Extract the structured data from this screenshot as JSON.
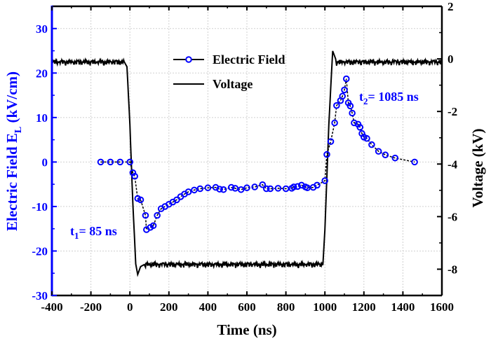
{
  "chart_data": {
    "type": "line",
    "title": "",
    "xlabel": "Time (ns)",
    "ylabel_left": "Electric Field  E",
    "ylabel_left_sub": "L",
    "ylabel_left_unit": " (kV/cm)",
    "ylabel_right": "Voltage (kV)",
    "xlim": [
      -400,
      1600
    ],
    "ylim_left": [
      -30,
      35
    ],
    "ylim_right": [
      -9,
      2
    ],
    "xticks": [
      -400,
      -200,
      0,
      200,
      400,
      600,
      800,
      1000,
      1200,
      1400,
      1600
    ],
    "yticks_left": [
      -30,
      -20,
      -10,
      0,
      10,
      20,
      30
    ],
    "yticks_right": [
      -8,
      -6,
      -4,
      -2,
      0,
      2
    ],
    "grid": true,
    "legend_position": "top-center",
    "colors": {
      "electric_field": "#0000ff",
      "voltage": "#000000",
      "left_axis": "#0000ff"
    },
    "series": [
      {
        "name": "Electric Field",
        "axis": "left",
        "marker": "open-circle",
        "x": [
          -150,
          -100,
          -50,
          0,
          15,
          25,
          40,
          55,
          80,
          85,
          105,
          120,
          140,
          160,
          180,
          200,
          220,
          240,
          260,
          280,
          300,
          330,
          360,
          400,
          440,
          460,
          480,
          520,
          540,
          570,
          600,
          640,
          680,
          700,
          720,
          760,
          800,
          830,
          840,
          860,
          880,
          900,
          910,
          940,
          960,
          1000,
          1010,
          1030,
          1050,
          1060,
          1080,
          1090,
          1100,
          1110,
          1120,
          1130,
          1140,
          1150,
          1170,
          1180,
          1190,
          1200,
          1215,
          1240,
          1275,
          1310,
          1360,
          1460
        ],
        "y": [
          0,
          0,
          0,
          0,
          -2.4,
          -3.2,
          -8.2,
          -8.5,
          -12,
          -15.2,
          -14.7,
          -14.3,
          -12,
          -10.5,
          -10,
          -9.5,
          -9,
          -8.5,
          -7.8,
          -7.2,
          -6.7,
          -6.3,
          -6,
          -5.8,
          -5.7,
          -6.1,
          -6.2,
          -5.7,
          -5.9,
          -6.2,
          -5.8,
          -5.6,
          -5.1,
          -6,
          -6,
          -5.9,
          -6,
          -5.9,
          -5.6,
          -5.5,
          -5.2,
          -5.6,
          -5.8,
          -5.7,
          -5.2,
          -4.2,
          1.7,
          4.6,
          8.8,
          12.7,
          13.8,
          14.8,
          16.2,
          18.7,
          13.3,
          12.6,
          11,
          8.8,
          8.5,
          7.8,
          6.4,
          5.6,
          5.3,
          3.9,
          2.4,
          1.6,
          0.9,
          0
        ]
      },
      {
        "name": "Voltage",
        "axis": "right",
        "marker": "none",
        "x": [
          -400,
          -30,
          -15,
          0,
          15,
          30,
          40,
          55,
          80,
          990,
          1000,
          1020,
          1040,
          1060,
          1600
        ],
        "y": [
          -0.1,
          -0.1,
          -0.3,
          -2.5,
          -5.5,
          -7.8,
          -8.2,
          -7.9,
          -7.8,
          -7.8,
          -6.5,
          -2.5,
          0.3,
          -0.1,
          -0.1
        ]
      }
    ],
    "annotations": [
      {
        "label": "t",
        "sub": "1",
        "rest": "= 85 ns",
        "x": -330,
        "y": -17
      },
      {
        "label": "t",
        "sub": "2",
        "rest": "= 1085 ns",
        "x": 1185,
        "y": 13
      }
    ],
    "legend": [
      {
        "label": "Electric Field",
        "style": "line-circle"
      },
      {
        "label": "Voltage",
        "style": "line"
      }
    ]
  }
}
